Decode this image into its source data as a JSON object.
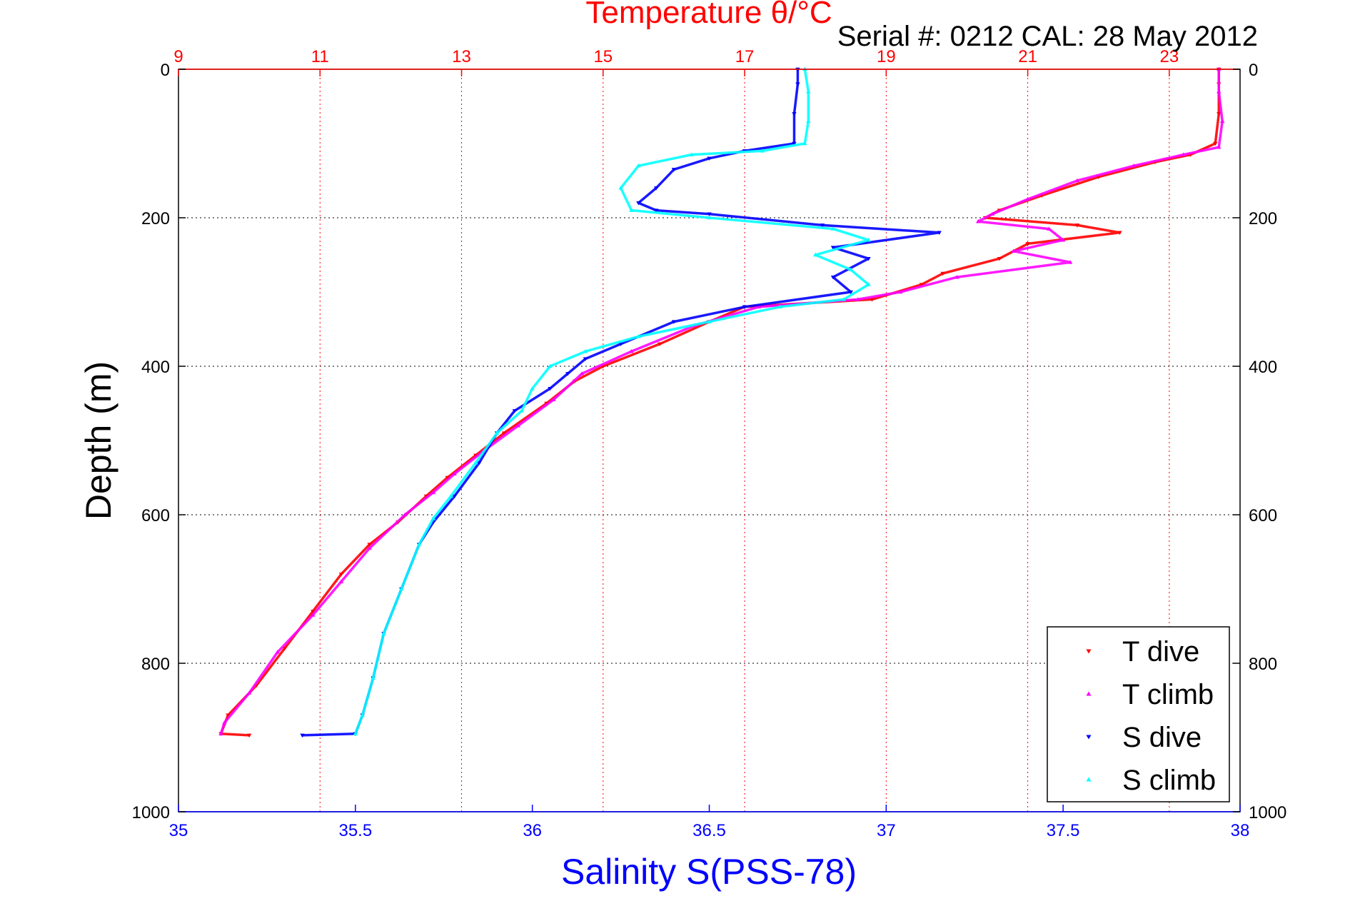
{
  "chart_data": {
    "type": "scatter",
    "title": "Temperature θ/°C",
    "subtitle": "Serial #: 0212  CAL: 28 May 2012",
    "xlabel": "Salinity S(PSS-78)",
    "ylabel": "Depth (m)",
    "x_bottom": {
      "lim": [
        35,
        38
      ],
      "ticks": [
        "35",
        "35.5",
        "36",
        "36.5",
        "37",
        "37.5",
        "38"
      ],
      "color": "#0000ff"
    },
    "x_top": {
      "lim": [
        9,
        24
      ],
      "ticks": [
        "9",
        "11",
        "13",
        "15",
        "17",
        "19",
        "21",
        "23"
      ],
      "color": "#ff0000"
    },
    "y": {
      "lim": [
        0,
        1000
      ],
      "reversed": true,
      "ticks": [
        "0",
        "200",
        "400",
        "600",
        "800",
        "1000"
      ]
    },
    "grid": true,
    "legend_position": "bottom-right",
    "series": [
      {
        "name": "T dive",
        "axis": "temperature",
        "color": "#ff0000",
        "marker": "triangle-down",
        "points": [
          [
            23.7,
            0
          ],
          [
            23.7,
            20
          ],
          [
            23.7,
            60
          ],
          [
            23.65,
            100
          ],
          [
            23.3,
            115
          ],
          [
            22.8,
            125
          ],
          [
            22.0,
            145
          ],
          [
            21.2,
            170
          ],
          [
            20.6,
            190
          ],
          [
            20.4,
            200
          ],
          [
            21.7,
            210
          ],
          [
            22.3,
            220
          ],
          [
            21.0,
            235
          ],
          [
            20.6,
            255
          ],
          [
            19.8,
            275
          ],
          [
            19.5,
            290
          ],
          [
            18.8,
            310
          ],
          [
            17.0,
            320
          ],
          [
            16.5,
            340
          ],
          [
            15.8,
            370
          ],
          [
            15.0,
            400
          ],
          [
            14.6,
            420
          ],
          [
            14.2,
            450
          ],
          [
            13.6,
            490
          ],
          [
            13.2,
            520
          ],
          [
            12.8,
            550
          ],
          [
            12.5,
            575
          ],
          [
            12.1,
            610
          ],
          [
            11.7,
            640
          ],
          [
            11.3,
            680
          ],
          [
            10.9,
            730
          ],
          [
            10.5,
            780
          ],
          [
            10.1,
            830
          ],
          [
            9.7,
            870
          ],
          [
            9.6,
            895
          ],
          [
            10.0,
            897
          ]
        ]
      },
      {
        "name": "T climb",
        "axis": "temperature",
        "color": "#ff00ff",
        "marker": "triangle-up",
        "points": [
          [
            23.7,
            0
          ],
          [
            23.7,
            30
          ],
          [
            23.75,
            70
          ],
          [
            23.7,
            105
          ],
          [
            23.2,
            115
          ],
          [
            22.5,
            130
          ],
          [
            21.7,
            150
          ],
          [
            21.0,
            175
          ],
          [
            20.5,
            195
          ],
          [
            20.3,
            205
          ],
          [
            21.3,
            215
          ],
          [
            21.5,
            230
          ],
          [
            20.8,
            245
          ],
          [
            21.6,
            260
          ],
          [
            20.0,
            280
          ],
          [
            19.2,
            300
          ],
          [
            18.6,
            310
          ],
          [
            17.2,
            320
          ],
          [
            16.3,
            345
          ],
          [
            15.4,
            380
          ],
          [
            14.7,
            410
          ],
          [
            14.3,
            445
          ],
          [
            13.8,
            480
          ],
          [
            13.3,
            515
          ],
          [
            12.9,
            545
          ],
          [
            12.6,
            570
          ],
          [
            12.2,
            600
          ],
          [
            11.7,
            645
          ],
          [
            11.3,
            690
          ],
          [
            10.9,
            735
          ],
          [
            10.4,
            785
          ],
          [
            10.0,
            840
          ],
          [
            9.65,
            880
          ],
          [
            9.6,
            895
          ]
        ]
      },
      {
        "name": "S dive",
        "axis": "salinity",
        "color": "#0000ff",
        "marker": "triangle-down",
        "points": [
          [
            36.75,
            0
          ],
          [
            36.75,
            20
          ],
          [
            36.74,
            60
          ],
          [
            36.74,
            100
          ],
          [
            36.6,
            110
          ],
          [
            36.5,
            120
          ],
          [
            36.4,
            135
          ],
          [
            36.35,
            160
          ],
          [
            36.3,
            180
          ],
          [
            36.35,
            190
          ],
          [
            36.5,
            195
          ],
          [
            36.82,
            210
          ],
          [
            37.15,
            220
          ],
          [
            36.85,
            240
          ],
          [
            36.95,
            255
          ],
          [
            36.85,
            280
          ],
          [
            36.9,
            300
          ],
          [
            36.6,
            320
          ],
          [
            36.4,
            340
          ],
          [
            36.25,
            370
          ],
          [
            36.15,
            390
          ],
          [
            36.1,
            410
          ],
          [
            36.05,
            430
          ],
          [
            35.95,
            460
          ],
          [
            35.9,
            490
          ],
          [
            35.85,
            530
          ],
          [
            35.78,
            575
          ],
          [
            35.72,
            610
          ],
          [
            35.68,
            640
          ],
          [
            35.63,
            700
          ],
          [
            35.58,
            760
          ],
          [
            35.55,
            820
          ],
          [
            35.52,
            870
          ],
          [
            35.5,
            895
          ],
          [
            35.35,
            897
          ]
        ]
      },
      {
        "name": "S climb",
        "axis": "salinity",
        "color": "#00ffff",
        "marker": "triangle-up",
        "points": [
          [
            36.77,
            0
          ],
          [
            36.78,
            30
          ],
          [
            36.78,
            70
          ],
          [
            36.77,
            100
          ],
          [
            36.65,
            110
          ],
          [
            36.45,
            115
          ],
          [
            36.3,
            130
          ],
          [
            36.25,
            160
          ],
          [
            36.28,
            190
          ],
          [
            36.5,
            200
          ],
          [
            36.85,
            215
          ],
          [
            36.95,
            230
          ],
          [
            36.8,
            250
          ],
          [
            36.9,
            270
          ],
          [
            36.95,
            290
          ],
          [
            36.88,
            310
          ],
          [
            36.7,
            320
          ],
          [
            36.5,
            340
          ],
          [
            36.3,
            360
          ],
          [
            36.15,
            380
          ],
          [
            36.05,
            400
          ],
          [
            36.0,
            430
          ],
          [
            35.97,
            460
          ],
          [
            35.9,
            490
          ],
          [
            35.84,
            530
          ],
          [
            35.77,
            575
          ],
          [
            35.72,
            605
          ],
          [
            35.68,
            640
          ],
          [
            35.63,
            700
          ],
          [
            35.58,
            760
          ],
          [
            35.55,
            820
          ],
          [
            35.52,
            870
          ],
          [
            35.5,
            895
          ]
        ]
      }
    ]
  }
}
